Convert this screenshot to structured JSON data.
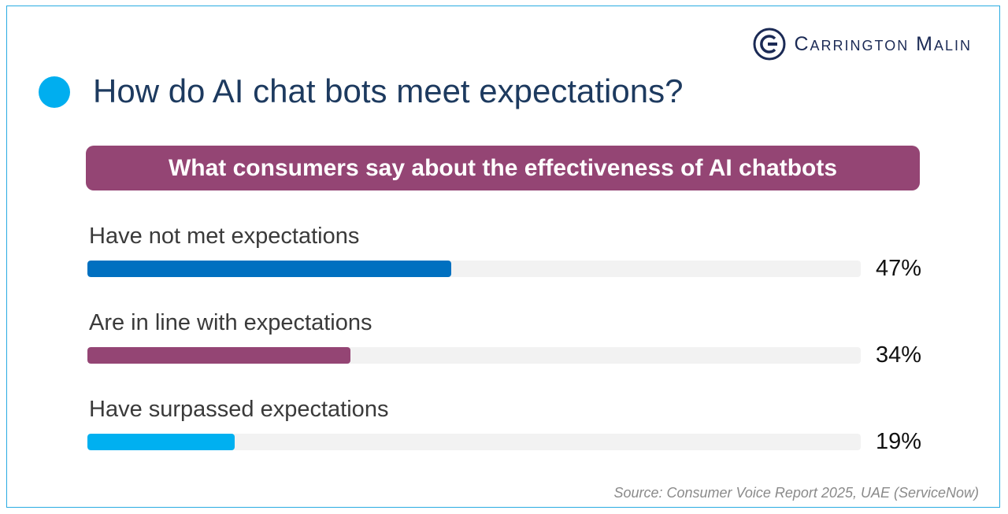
{
  "brand": {
    "name": "Carrington Malin",
    "color": "#1b2a55"
  },
  "title": "How do AI chat bots meet expectations?",
  "accent_color": "#00aeef",
  "banner": {
    "text": "What consumers say about the effectiveness of AI chatbots",
    "color": "#944574"
  },
  "chart_data": {
    "type": "bar",
    "orientation": "horizontal",
    "categories": [
      "Have not met expectations",
      "Are in line with expectations",
      "Have surpassed expectations"
    ],
    "values": [
      47,
      34,
      19
    ],
    "value_labels": [
      "47%",
      "34%",
      "19%"
    ],
    "colors": [
      "#0070c0",
      "#944574",
      "#00b0f0"
    ],
    "xlim": [
      0,
      100
    ],
    "title": "What consumers say about the effectiveness of AI chatbots",
    "xlabel": "",
    "ylabel": ""
  },
  "source": "Source: Consumer Voice Report 2025, UAE (ServiceNow)"
}
